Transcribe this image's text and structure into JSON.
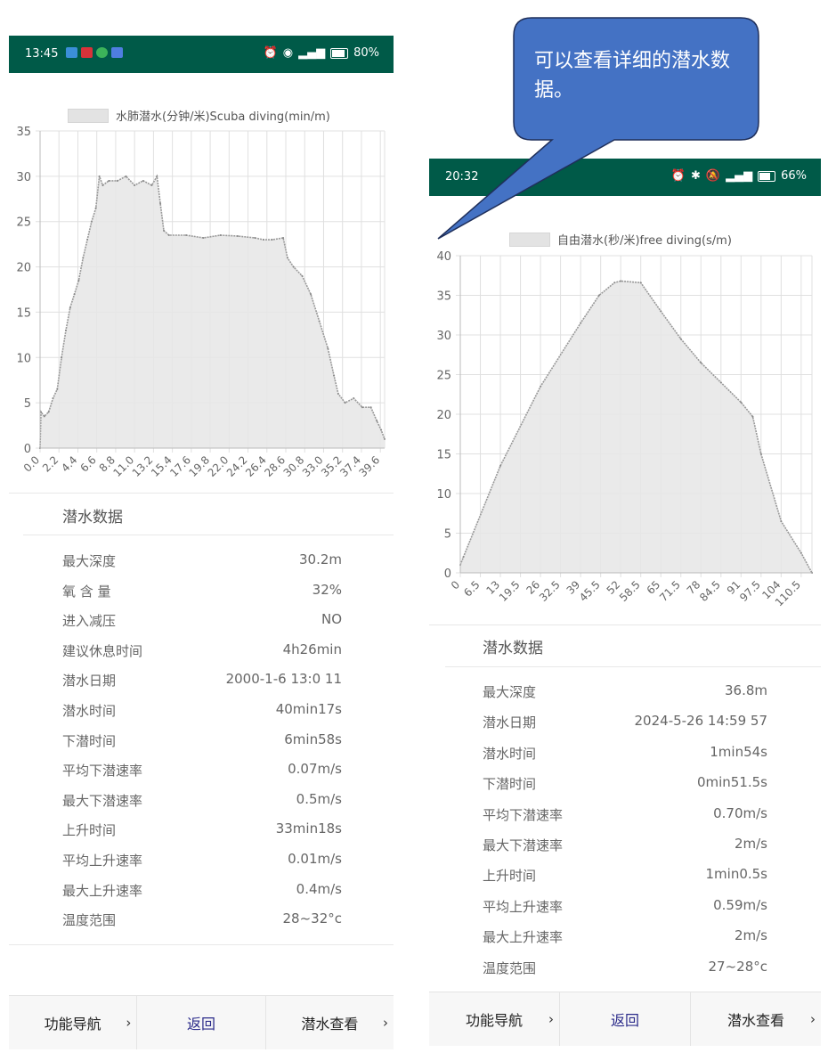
{
  "callout": {
    "text": "可以查看详细的潜水数据。",
    "fill": "#4472C4",
    "border": "#1f2f5a"
  },
  "left": {
    "status": {
      "time": "13:45",
      "battery": "80%",
      "battery_level": 0.8,
      "bg": "#005a48"
    },
    "legend": "水肺潜水(分钟/米)Scuba diving(min/m)",
    "section_title": "潜水数据",
    "rows": [
      {
        "label": "最大深度",
        "value": "30.2m"
      },
      {
        "label": "氧 含 量",
        "value": "32%"
      },
      {
        "label": "进入减压",
        "value": "NO"
      },
      {
        "label": "建议休息时间",
        "value": "4h26min"
      },
      {
        "label": "潜水日期",
        "value": "2000-1-6 13:0 11"
      },
      {
        "label": "潜水时间",
        "value": "40min17s"
      },
      {
        "label": "下潜时间",
        "value": "6min58s"
      },
      {
        "label": "平均下潜速率",
        "value": "0.07m/s"
      },
      {
        "label": "最大下潜速率",
        "value": "0.5m/s"
      },
      {
        "label": "上升时间",
        "value": "33min18s"
      },
      {
        "label": "平均上升速率",
        "value": "0.01m/s"
      },
      {
        "label": "最大上升速率",
        "value": "0.4m/s"
      },
      {
        "label": "温度范围",
        "value": "28~32°c"
      }
    ],
    "nav": {
      "func": "功能导航",
      "back": "返回",
      "view": "潜水查看",
      "chevron": "›"
    }
  },
  "right": {
    "status": {
      "time": "20:32",
      "battery": "66%",
      "battery_level": 0.66,
      "bg": "#005a48"
    },
    "legend": "自由潜水(秒/米)free diving(s/m)",
    "section_title": "潜水数据",
    "rows": [
      {
        "label": "最大深度",
        "value": "36.8m"
      },
      {
        "label": "潜水日期",
        "value": "2024-5-26 14:59 57"
      },
      {
        "label": "潜水时间",
        "value": "1min54s"
      },
      {
        "label": "下潜时间",
        "value": "0min51.5s"
      },
      {
        "label": "平均下潜速率",
        "value": "0.70m/s"
      },
      {
        "label": "最大下潜速率",
        "value": "2m/s"
      },
      {
        "label": "上升时间",
        "value": "1min0.5s"
      },
      {
        "label": "平均上升速率",
        "value": "0.59m/s"
      },
      {
        "label": "最大上升速率",
        "value": "2m/s"
      },
      {
        "label": "温度范围",
        "value": "27~28°c"
      }
    ],
    "nav": {
      "func": "功能导航",
      "back": "返回",
      "view": "潜水查看",
      "chevron": "›"
    }
  },
  "chart_data": [
    {
      "type": "area",
      "series": [
        {
          "name": "水肺潜水(分钟/米)Scuba diving(min/m)",
          "x": [
            0,
            0.1,
            0.5,
            1,
            1.5,
            2,
            2.5,
            3,
            3.5,
            4,
            4.5,
            5,
            5.5,
            6,
            6.5,
            6.9,
            7.3,
            8,
            9,
            10,
            11,
            12,
            13,
            13.6,
            14,
            14.4,
            15,
            17,
            19,
            21,
            23,
            25,
            26,
            27,
            28.3,
            28.8,
            29.5,
            30.5,
            31.5,
            32.5,
            33.5,
            34.2,
            34.7,
            35.5,
            36.5,
            37.5,
            38.5,
            39.2,
            39.7,
            40.1
          ],
          "y": [
            0,
            4,
            3.5,
            4,
            5.5,
            6.5,
            10,
            13,
            15.5,
            17,
            18.5,
            21,
            23,
            25,
            26.5,
            30,
            29,
            29.5,
            29.5,
            30,
            29,
            29.5,
            29,
            30,
            27,
            24,
            23.5,
            23.5,
            23.2,
            23.5,
            23.4,
            23.2,
            23,
            23,
            23.2,
            21,
            20,
            19,
            17,
            14,
            11,
            8,
            6,
            5,
            5.5,
            4.5,
            4.5,
            3,
            2,
            1
          ]
        }
      ],
      "x_ticks": [
        "0.0",
        "2.2",
        "4.4",
        "6.6",
        "8.8",
        "11.0",
        "13.2",
        "15.4",
        "17.6",
        "19.8",
        "22.0",
        "24.2",
        "26.4",
        "28.6",
        "30.8",
        "33.0",
        "35.2",
        "37.4",
        "39.6"
      ],
      "y_ticks": [
        "0",
        "5",
        "10",
        "15",
        "20",
        "25",
        "30",
        "35"
      ],
      "xlim": [
        0,
        40.1
      ],
      "ylim": [
        0,
        35
      ],
      "grid": true,
      "legend": "top",
      "fill": "#e6e6e6",
      "line": "#999999"
    },
    {
      "type": "area",
      "series": [
        {
          "name": "自由潜水(秒/米)free diving(s/m)",
          "x": [
            0,
            1,
            13,
            26,
            39,
            45,
            50,
            52,
            58.5,
            65,
            71.5,
            78,
            84.5,
            91,
            94.8,
            97.5,
            104,
            110.5,
            114
          ],
          "y": [
            1,
            2,
            13.5,
            23.5,
            31.5,
            35,
            36.6,
            36.8,
            36.6,
            33,
            29.5,
            26.5,
            24,
            21.5,
            19.7,
            15,
            6.5,
            2.5,
            0
          ]
        }
      ],
      "x_ticks": [
        "0",
        "6.5",
        "13",
        "19.5",
        "26",
        "32.5",
        "39",
        "45.5",
        "52",
        "58.5",
        "65",
        "71.5",
        "78",
        "84.5",
        "91",
        "97.5",
        "104",
        "110.5"
      ],
      "y_ticks": [
        "0",
        "5",
        "10",
        "15",
        "20",
        "25",
        "30",
        "35",
        "40"
      ],
      "xlim": [
        0,
        114
      ],
      "ylim": [
        0,
        40
      ],
      "grid": true,
      "legend": "top",
      "fill": "#e6e6e6",
      "line": "#999999"
    }
  ]
}
